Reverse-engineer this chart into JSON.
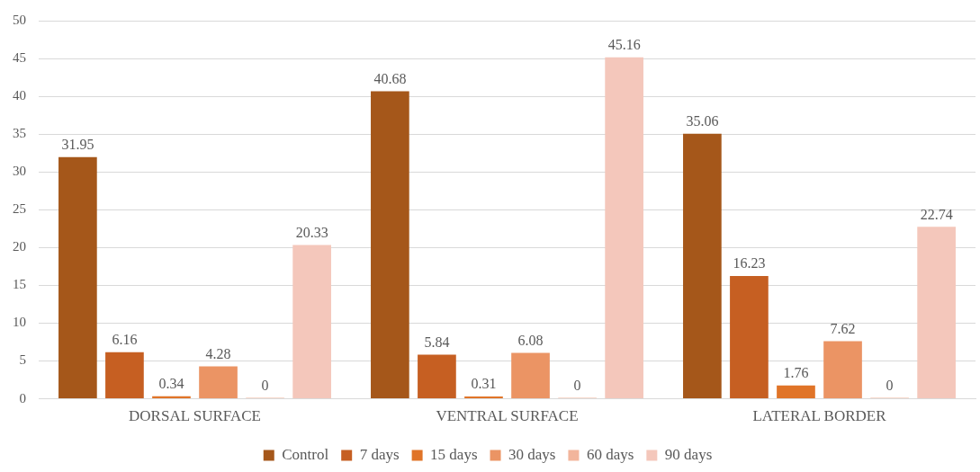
{
  "chart_data": {
    "type": "bar",
    "categories": [
      "DORSAL SURFACE",
      "VENTRAL SURFACE",
      "LATERAL BORDER"
    ],
    "series": [
      {
        "name": "Control",
        "color": "#a5571a",
        "values": [
          31.95,
          40.68,
          35.06
        ]
      },
      {
        "name": "7 days",
        "color": "#c65f22",
        "values": [
          6.16,
          5.84,
          16.23
        ]
      },
      {
        "name": "15 days",
        "color": "#e07428",
        "values": [
          0.34,
          0.31,
          1.76
        ]
      },
      {
        "name": "30 days",
        "color": "#eb9464",
        "values": [
          4.28,
          6.08,
          7.62
        ]
      },
      {
        "name": "60 days",
        "color": "#f2b59c",
        "values": [
          0,
          0,
          0
        ]
      },
      {
        "name": "90 days",
        "color": "#f4c7bb",
        "values": [
          20.33,
          45.16,
          22.74
        ]
      }
    ],
    "ylim": [
      0,
      50
    ],
    "yticks": [
      0,
      5,
      10,
      15,
      20,
      25,
      30,
      35,
      40,
      45,
      50
    ],
    "grid": "y",
    "legend": "bottom",
    "data_labels": true
  }
}
